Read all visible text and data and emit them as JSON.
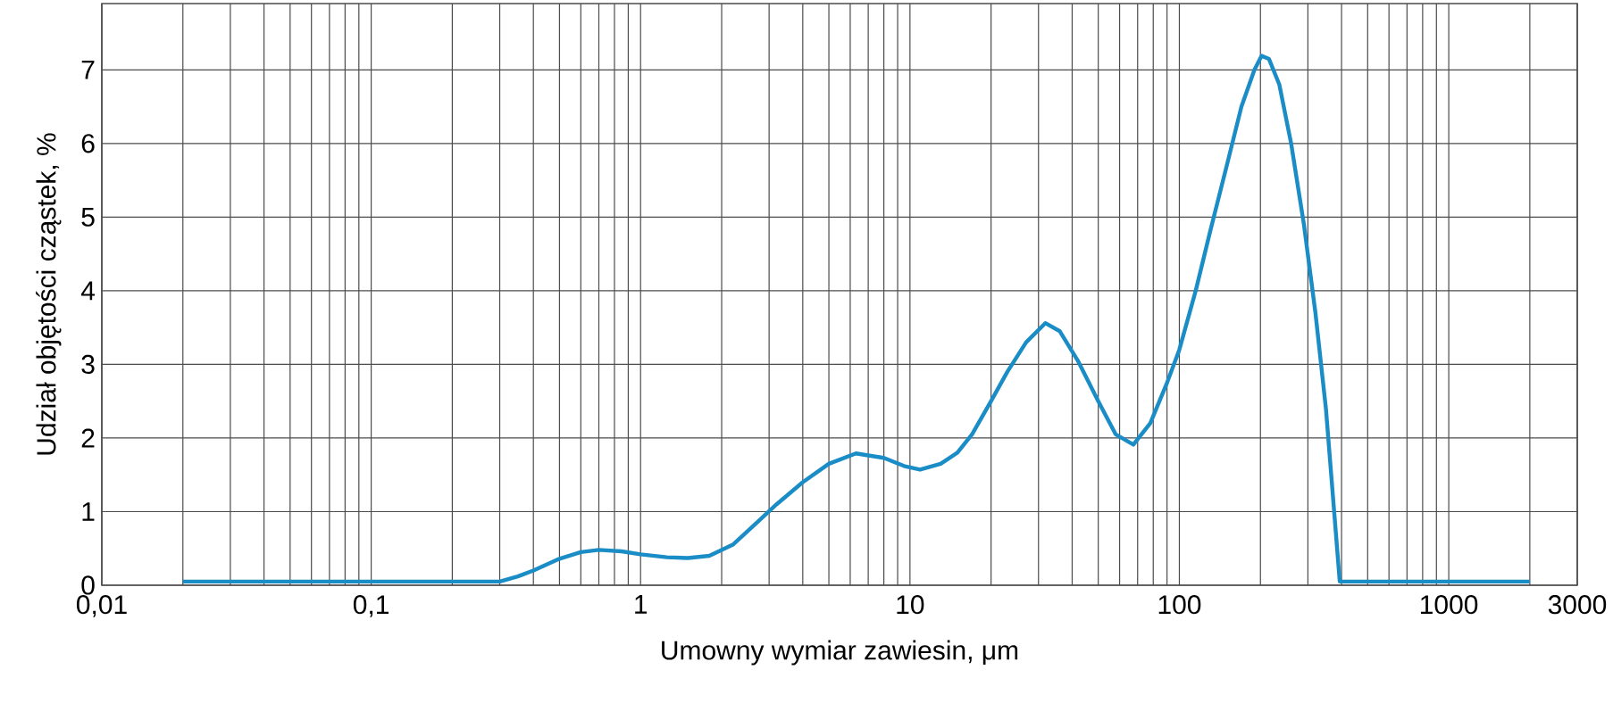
{
  "chart_data": {
    "type": "line",
    "xlabel": "Umowny wymiar zawiesin, μm",
    "ylabel": "Udział objętości cząstek, %",
    "log": "x",
    "grid": true,
    "marker": "none",
    "line_style": "solid",
    "xlim": [
      0.01,
      3000
    ],
    "ylim": [
      0,
      7.9
    ],
    "xticks": [
      {
        "value": 0.01,
        "label": "0,01"
      },
      {
        "value": 0.1,
        "label": "0,1"
      },
      1,
      10,
      100,
      1000,
      3000
    ],
    "yticks": [
      0,
      1,
      2,
      3,
      4,
      5,
      6,
      7
    ],
    "series": [
      {
        "color": "#1a8cc6",
        "x": [
          0.02,
          0.3,
          0.35,
          0.4,
          0.5,
          0.6,
          0.7,
          0.85,
          1.0,
          1.25,
          1.5,
          1.8,
          2.2,
          2.7,
          3.2,
          4,
          5,
          6.3,
          8,
          9.5,
          10.9,
          13,
          15,
          17,
          20,
          23,
          27,
          31.8,
          36,
          42,
          50,
          58,
          67.5,
          78,
          90,
          100,
          115,
          130,
          150,
          170,
          190,
          202,
          215,
          235,
          260,
          290,
          320,
          350,
          394,
          2000
        ],
        "values": [
          0.05,
          0.05,
          0.12,
          0.2,
          0.36,
          0.45,
          0.48,
          0.46,
          0.42,
          0.38,
          0.37,
          0.4,
          0.55,
          0.85,
          1.1,
          1.4,
          1.65,
          1.79,
          1.73,
          1.62,
          1.57,
          1.65,
          1.8,
          2.05,
          2.5,
          2.9,
          3.3,
          3.56,
          3.45,
          3.05,
          2.5,
          2.05,
          1.91,
          2.2,
          2.75,
          3.2,
          4.0,
          4.8,
          5.7,
          6.5,
          7.0,
          7.19,
          7.15,
          6.8,
          6.0,
          4.9,
          3.7,
          2.4,
          0.05,
          0.05
        ]
      }
    ]
  }
}
